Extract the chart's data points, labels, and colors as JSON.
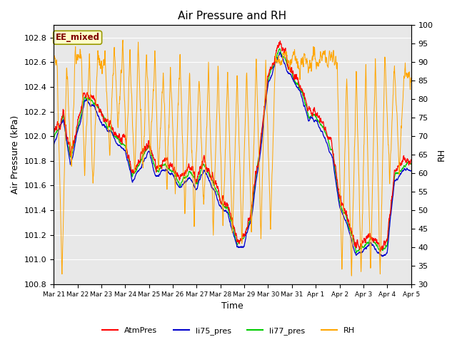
{
  "title": "Air Pressure and RH",
  "xlabel": "Time",
  "ylabel_left": "Air Pressure (kPa)",
  "ylabel_right": "RH",
  "ylim_left": [
    100.8,
    102.9
  ],
  "ylim_right": [
    30,
    100
  ],
  "bg_color": "#e8e8e8",
  "annotation_text": "EE_mixed",
  "annotation_bg": "#ffffcc",
  "annotation_border": "#999900",
  "annotation_text_color": "#800000",
  "colors": {
    "AtmPres": "#ff0000",
    "li75_pres": "#0000cc",
    "li77_pres": "#00cc00",
    "RH": "#ffa500"
  },
  "x_tick_labels": [
    "Mar 21",
    "Mar 22",
    "Mar 23",
    "Mar 24",
    "Mar 25",
    "Mar 26",
    "Mar 27",
    "Mar 28",
    "Mar 29",
    "Mar 30",
    "Mar 31",
    "Apr 1",
    "Apr 2",
    "Apr 3",
    "Apr 4",
    "Apr 5"
  ],
  "num_points": 2000
}
